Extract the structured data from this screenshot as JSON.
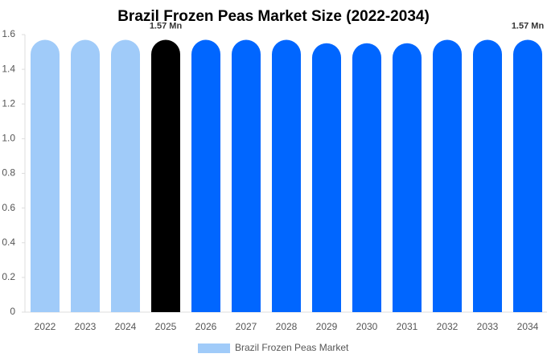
{
  "chart_data": {
    "type": "bar",
    "title": "Brazil Frozen Peas Market Size (2022-2034)",
    "categories": [
      "2022",
      "2023",
      "2024",
      "2025",
      "2026",
      "2027",
      "2028",
      "2029",
      "2030",
      "2031",
      "2032",
      "2033",
      "2034"
    ],
    "series": [
      {
        "name": "Brazil Frozen Peas Market",
        "colors": [
          "#a0cbf9",
          "#a0cbf9",
          "#a0cbf9",
          "#000000",
          "#0066ff",
          "#0066ff",
          "#0066ff",
          "#0066ff",
          "#0066ff",
          "#0066ff",
          "#0066ff",
          "#0066ff",
          "#0066ff"
        ],
        "values": [
          1.57,
          1.57,
          1.57,
          1.57,
          1.57,
          1.57,
          1.57,
          1.55,
          1.55,
          1.55,
          1.57,
          1.57,
          1.57
        ],
        "value_labels": [
          null,
          null,
          null,
          "1.57 Mn",
          null,
          null,
          null,
          null,
          null,
          null,
          null,
          null,
          "1.57 Mn"
        ]
      }
    ],
    "ylim": [
      0,
      1.6
    ],
    "yticks": [
      0,
      0.2,
      0.4,
      0.6,
      0.8,
      {
        "value": 1,
        "label": "1.0"
      },
      1.2,
      1.4,
      1.6
    ],
    "grid": false
  }
}
